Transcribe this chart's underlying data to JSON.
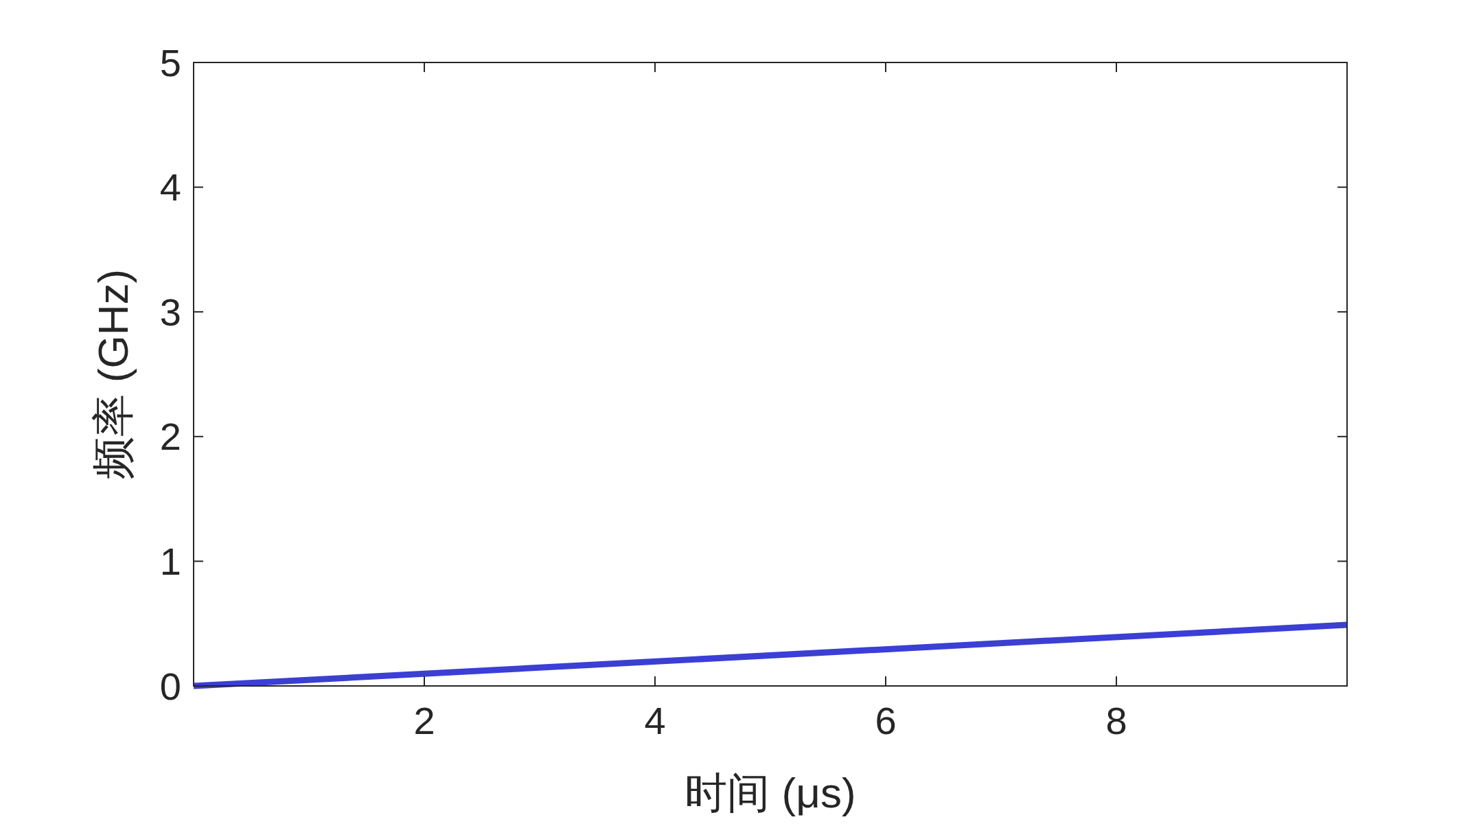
{
  "chart_data": {
    "type": "line",
    "xlabel": "时间 (μs)",
    "ylabel": "频率 (GHz)",
    "xlim": [
      0,
      10
    ],
    "ylim": [
      0,
      5
    ],
    "xticks": [
      2,
      4,
      6,
      8
    ],
    "yticks": [
      0,
      1,
      2,
      3,
      4,
      5
    ],
    "grid": false,
    "line_style": "solid",
    "series": [
      {
        "color": "#3b3fd4",
        "x": [
          0,
          10
        ],
        "values": [
          0,
          0.49
        ]
      }
    ]
  }
}
